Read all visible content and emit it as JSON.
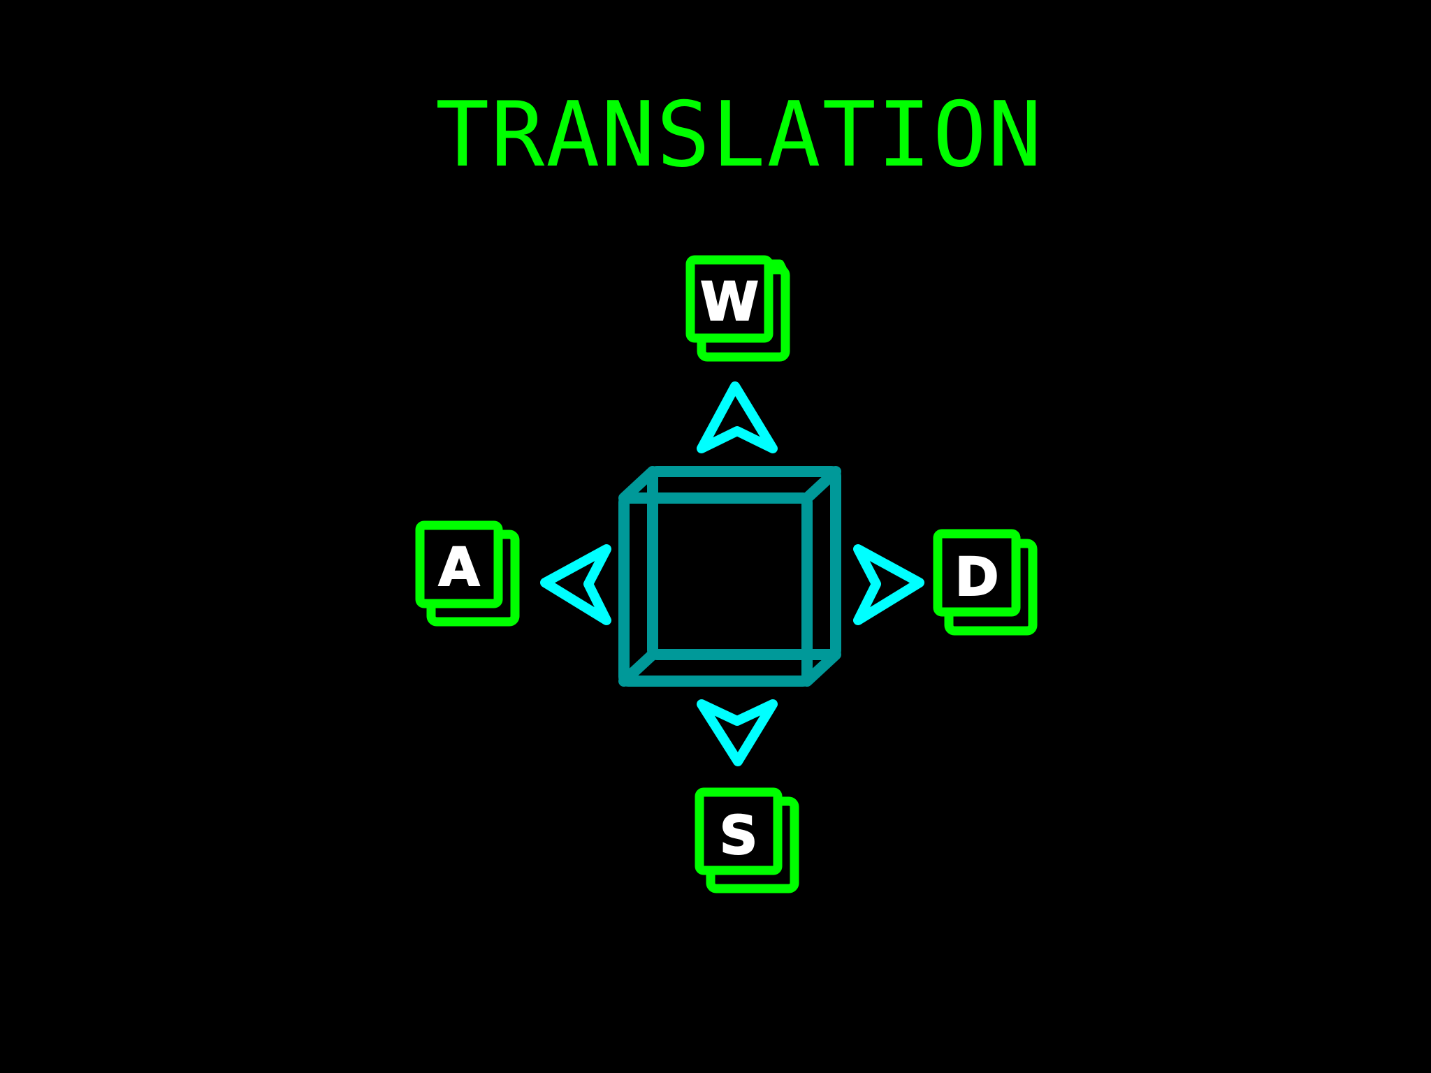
{
  "title": "TRANSLATION",
  "keys": {
    "up": "W",
    "left": "A",
    "right": "D",
    "down": "S"
  },
  "colors": {
    "background": "#000000",
    "title": "#00ff00",
    "key_outline": "#00ff00",
    "key_letter": "#ffffff",
    "arrow": "#00ffff",
    "cube": "#009999"
  },
  "icons": {
    "center": "wireframe-cube-icon",
    "arrows": [
      "arrow-up-icon",
      "arrow-left-icon",
      "arrow-right-icon",
      "arrow-down-icon"
    ]
  }
}
